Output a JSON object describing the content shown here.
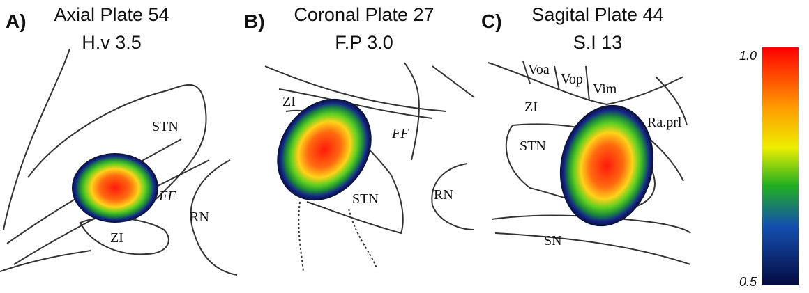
{
  "panels": [
    {
      "label": "A)",
      "title": "Axial Plate 54",
      "subtitle": "H.v 3.5",
      "structures": [
        "STN",
        "FF",
        "RN",
        "ZI"
      ]
    },
    {
      "label": "B)",
      "title": "Coronal Plate 27",
      "subtitle": "F.P 3.0",
      "structures": [
        "ZI",
        "FF",
        "STN",
        "RN"
      ]
    },
    {
      "label": "C)",
      "title": "Sagital Plate 44",
      "subtitle": "S.I 13",
      "structures": [
        "Voa",
        "Vop",
        "Vim",
        "ZI",
        "Ra.prl",
        "STN",
        "SN"
      ]
    }
  ],
  "colorbar": {
    "ticks": [
      {
        "value": 1,
        "label": "1.0"
      },
      {
        "value": 0.5,
        "label": "0.5"
      }
    ]
  }
}
